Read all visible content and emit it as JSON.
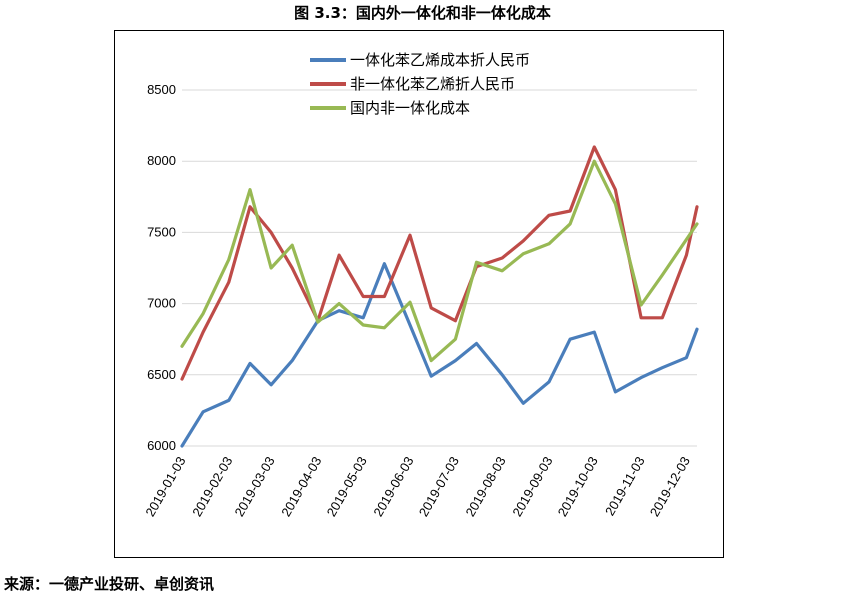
{
  "figure_title": "图 3.3：国内外一体化和非一体化成本",
  "source": "来源：一德产业投研、卓创资讯",
  "chart_data": {
    "type": "line",
    "title": "",
    "xlabel": "",
    "ylabel": "",
    "ylim": [
      6000,
      8500
    ],
    "yticks": [
      6000,
      6500,
      7000,
      7500,
      8000,
      8500
    ],
    "xticks": [
      "2019-01-03",
      "2019-02-03",
      "2019-03-03",
      "2019-04-03",
      "2019-05-03",
      "2019-06-03",
      "2019-07-03",
      "2019-08-03",
      "2019-09-03",
      "2019-10-03",
      "2019-11-03",
      "2019-12-03"
    ],
    "x": [
      "2019-01-03",
      "2019-01-17",
      "2019-02-03",
      "2019-02-17",
      "2019-03-03",
      "2019-03-17",
      "2019-04-03",
      "2019-04-17",
      "2019-05-03",
      "2019-05-17",
      "2019-06-03",
      "2019-06-17",
      "2019-07-03",
      "2019-07-17",
      "2019-08-03",
      "2019-08-17",
      "2019-09-03",
      "2019-09-17",
      "2019-10-03",
      "2019-10-17",
      "2019-11-03",
      "2019-11-17",
      "2019-12-03",
      "2019-12-10"
    ],
    "legend_position": "top-center",
    "series": [
      {
        "name": "一体化苯乙烯成本折人民币",
        "color": "#4a7ebb",
        "values": [
          6000,
          6240,
          6320,
          6580,
          6430,
          6600,
          6880,
          6950,
          6900,
          7280,
          6850,
          6490,
          6600,
          6720,
          6500,
          6300,
          6450,
          6750,
          6800,
          6380,
          6480,
          6550,
          6620,
          6820
        ]
      },
      {
        "name": "非一体化苯乙烯折人民币",
        "color": "#be4b48",
        "values": [
          6470,
          6800,
          7150,
          7680,
          7500,
          7250,
          6880,
          7340,
          7050,
          7050,
          7480,
          6970,
          6880,
          7260,
          7320,
          7440,
          7620,
          7650,
          8100,
          7800,
          6900,
          6900,
          7340,
          7680
        ]
      },
      {
        "name": "国内非一体化成本",
        "color": "#98b954",
        "values": [
          6700,
          6930,
          7310,
          7800,
          7250,
          7410,
          6870,
          7000,
          6850,
          6830,
          7010,
          6600,
          6750,
          7290,
          7230,
          7350,
          7420,
          7560,
          8000,
          7700,
          6990,
          7200,
          7450,
          7560
        ]
      }
    ]
  }
}
